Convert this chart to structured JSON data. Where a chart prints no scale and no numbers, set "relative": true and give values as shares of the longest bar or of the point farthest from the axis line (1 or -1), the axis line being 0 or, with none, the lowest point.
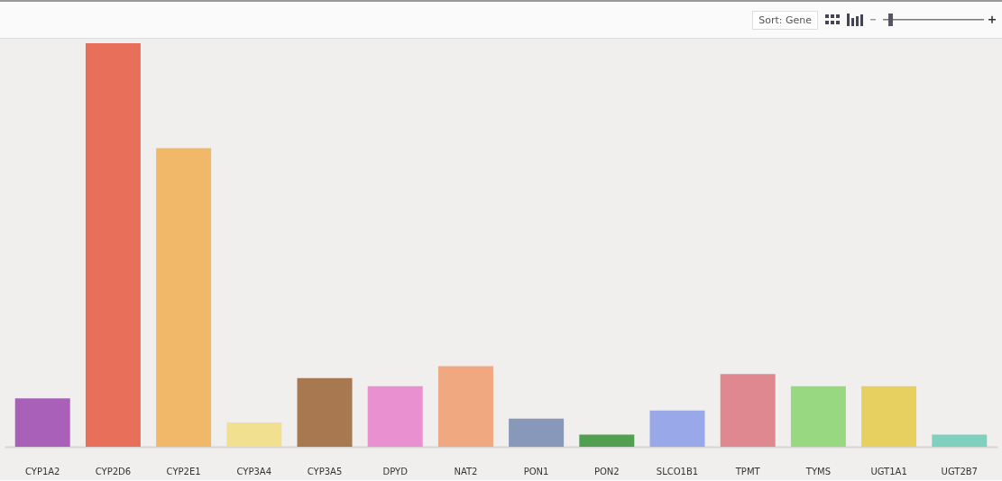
{
  "chart_data": {
    "type": "bar",
    "relative": true,
    "annotations": [
      "Sort: Gene"
    ],
    "categories": [
      "CYP1A2",
      "CYP2D6",
      "CYP2E1",
      "CYP3A4",
      "CYP3A5",
      "DPYD",
      "NAT2",
      "PON1",
      "PON2",
      "SLCO1B1",
      "TPMT",
      "TYMS",
      "UGT1A1",
      "UGT2B7"
    ],
    "values": [
      0.12,
      1,
      0.74,
      0.06,
      0.17,
      0.15,
      0.2,
      0.07,
      0.03,
      0.09,
      0.18,
      0.15,
      0.15,
      0.03
    ],
    "colors": [
      "#a860b8",
      "#e8705a",
      "#f0b868",
      "#f0e090",
      "#a87850",
      "#e890d0",
      "#f0a880",
      "#8898b8",
      "#50a050",
      "#98a8e8",
      "#e08890",
      "#98d880",
      "#e8d060",
      "#80d0c0"
    ],
    "legend": false
  }
}
